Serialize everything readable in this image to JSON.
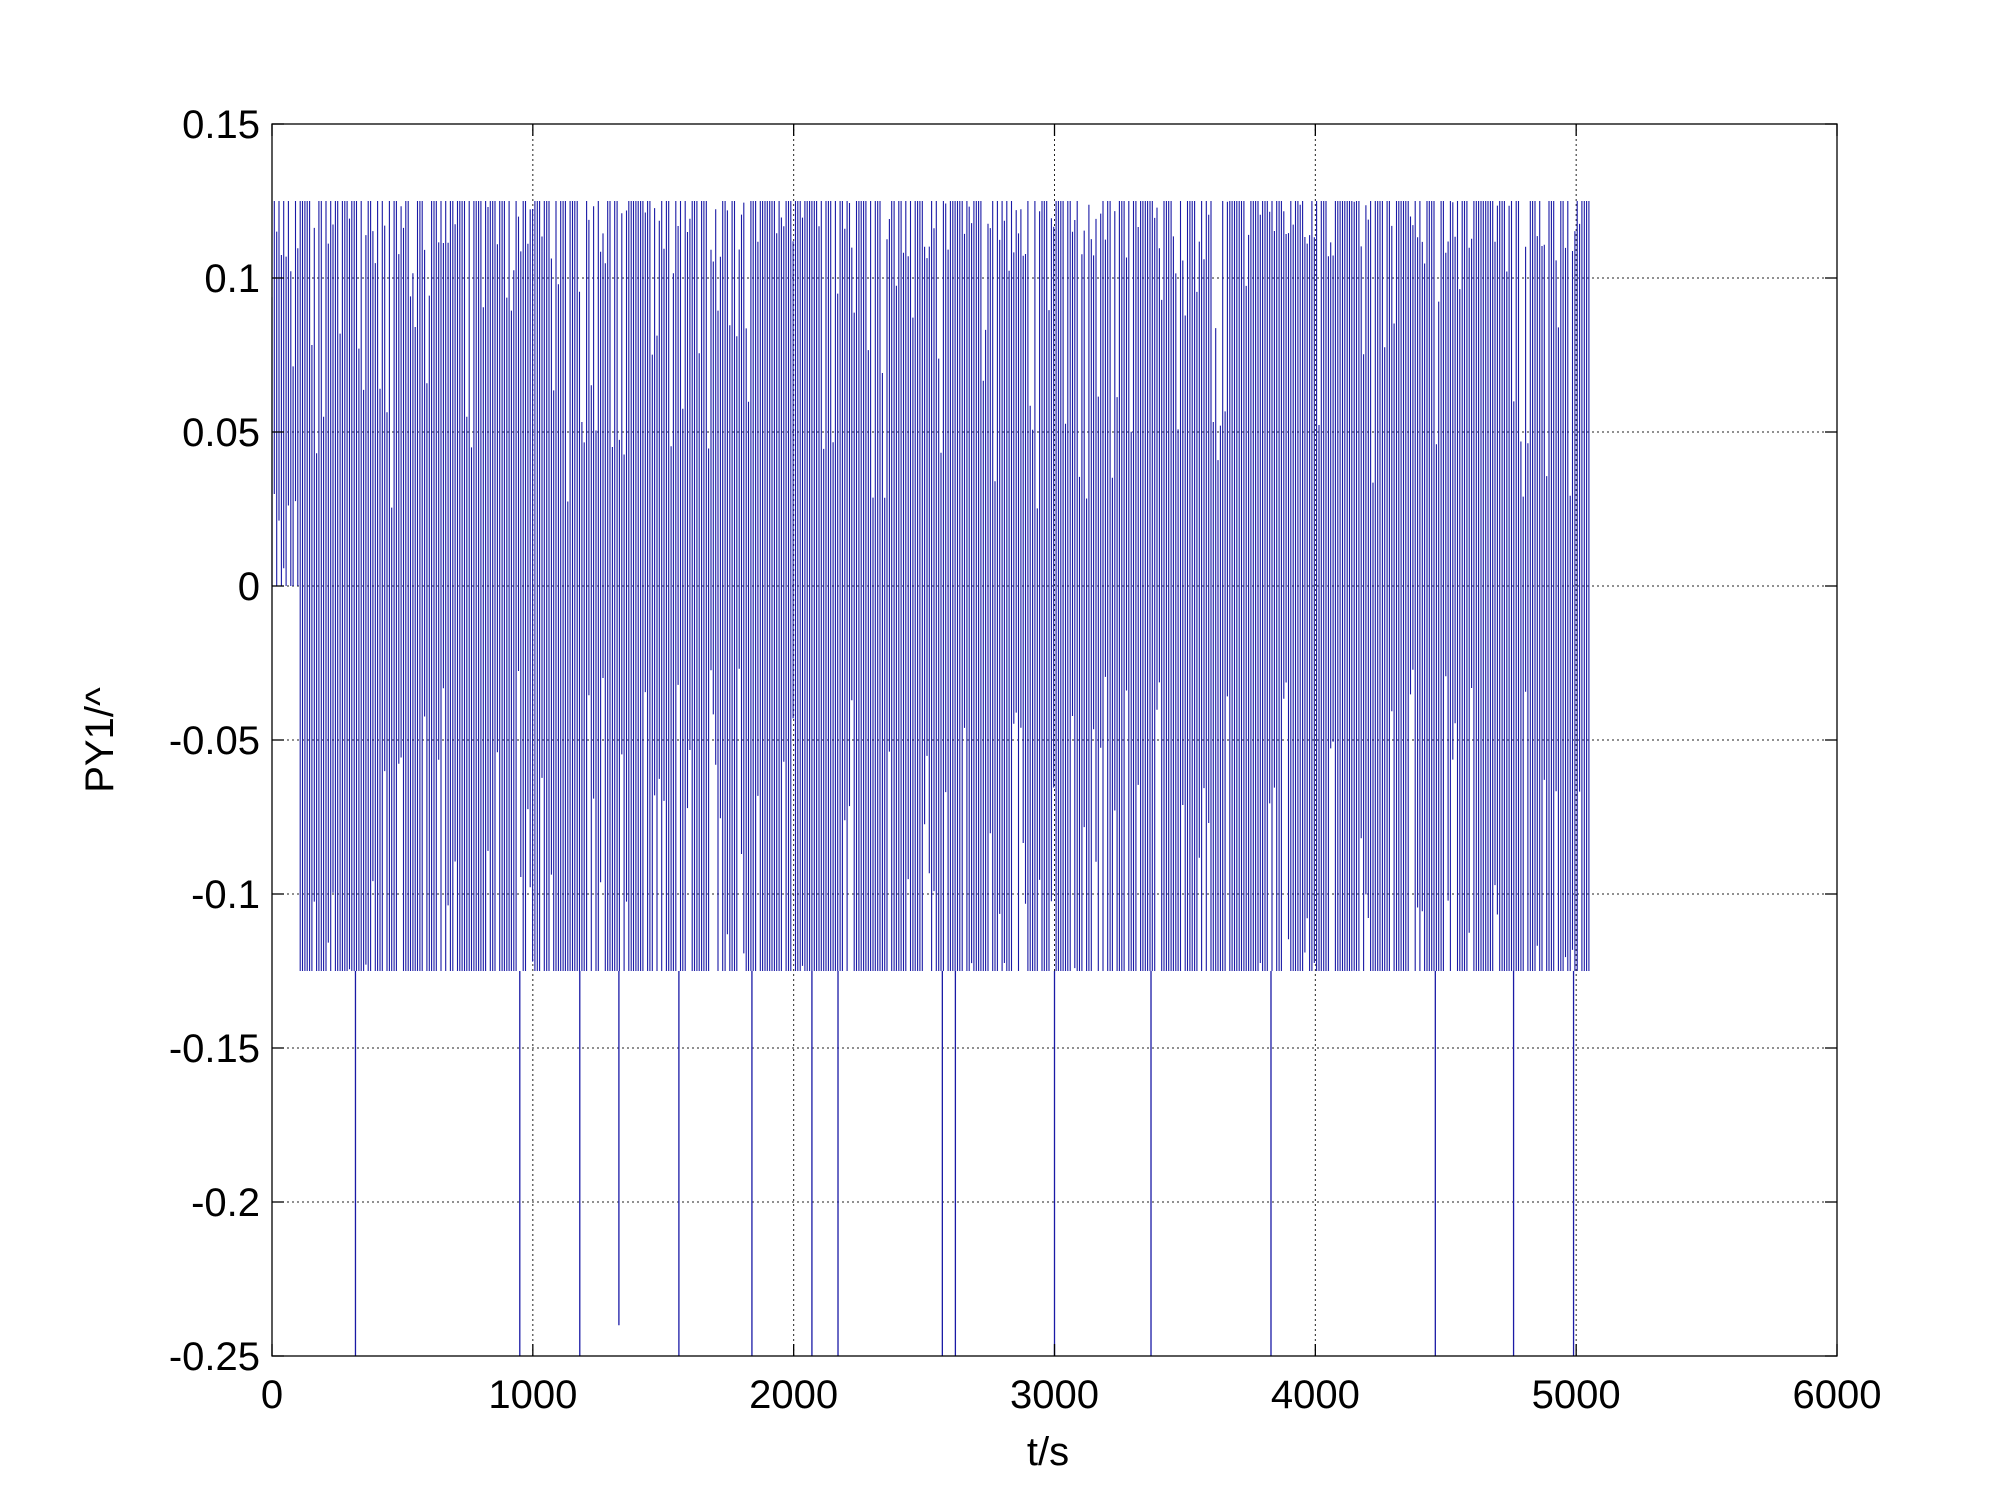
{
  "chart_data": {
    "type": "line",
    "title": "",
    "xlabel": "t/s",
    "ylabel": "PY1/^",
    "xlim": [
      0,
      6000
    ],
    "ylim": [
      -0.25,
      0.15
    ],
    "xticks": [
      0,
      1000,
      2000,
      3000,
      4000,
      5000,
      6000
    ],
    "xtick_labels": [
      "0",
      "1000",
      "2000",
      "3000",
      "4000",
      "5000",
      "6000"
    ],
    "yticks": [
      0.15,
      0.1,
      0.05,
      0,
      -0.05,
      -0.1,
      -0.15,
      -0.2,
      -0.25
    ],
    "ytick_labels": [
      "0.15",
      "0.1",
      "0.05",
      "0",
      "-0.05",
      "-0.1",
      "-0.15",
      "-0.2",
      "-0.25"
    ],
    "grid": true,
    "legend": "none",
    "line_color": "#1a1aa6",
    "series": [
      {
        "description_of_signal": "dense oscillation between about -0.125 and 0.125 from t=0 to about t=5050; first ~100 s stays between 0 and 0.125; a few spikes reach down toward -0.25",
        "t_start": 0,
        "t_end": 5050,
        "upper_envelope": 0.125,
        "lower_envelope": -0.125,
        "initial_segment": {
          "t_start": 0,
          "t_end": 100,
          "min": 0,
          "max": 0.125
        },
        "spikes": [
          {
            "t": 320,
            "y": -0.25
          },
          {
            "t": 950,
            "y": -0.25
          },
          {
            "t": 1180,
            "y": -0.25
          },
          {
            "t": 1330,
            "y": -0.24
          },
          {
            "t": 1560,
            "y": -0.25
          },
          {
            "t": 1840,
            "y": -0.25
          },
          {
            "t": 2070,
            "y": -0.25
          },
          {
            "t": 2170,
            "y": -0.25
          },
          {
            "t": 2570,
            "y": -0.25
          },
          {
            "t": 2620,
            "y": -0.25
          },
          {
            "t": 3000,
            "y": -0.25
          },
          {
            "t": 3370,
            "y": -0.25
          },
          {
            "t": 3830,
            "y": -0.25
          },
          {
            "t": 4460,
            "y": -0.25
          },
          {
            "t": 4760,
            "y": -0.25
          },
          {
            "t": 4990,
            "y": -0.25
          }
        ]
      }
    ]
  }
}
